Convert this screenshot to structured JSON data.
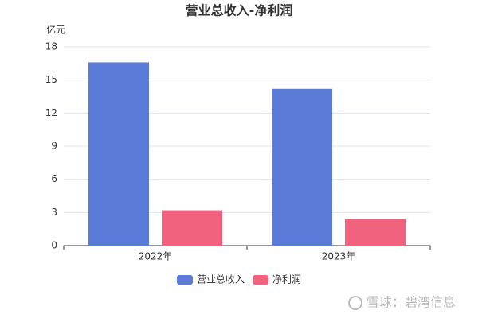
{
  "chart_data": {
    "type": "bar",
    "title": "营业总收入-净利润",
    "y_label": "亿元",
    "categories": [
      "2022年",
      "2023年"
    ],
    "series": [
      {
        "name": "营业总收入",
        "color": "#5b7bd8",
        "values": [
          16.6,
          14.2
        ]
      },
      {
        "name": "净利润",
        "color": "#f0627e",
        "values": [
          3.2,
          2.4
        ]
      }
    ],
    "ylim": [
      0,
      18
    ],
    "yticks": [
      0,
      3,
      6,
      9,
      12,
      15,
      18
    ],
    "grid": true,
    "legend": "bottom"
  },
  "watermark": "雪球：碧湾信息"
}
